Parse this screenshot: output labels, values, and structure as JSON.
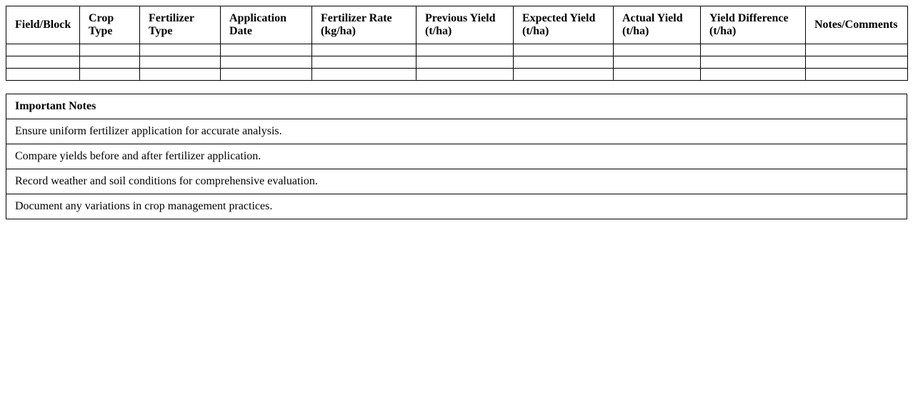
{
  "table": {
    "headers": [
      "Field/Block",
      "Crop Type",
      "Fertilizer Type",
      "Application Date",
      "Fertilizer Rate (kg/ha)",
      "Previous Yield (t/ha)",
      "Expected Yield (t/ha)",
      "Actual Yield (t/ha)",
      "Yield Difference (t/ha)",
      "Notes/Comments"
    ],
    "rows": [
      [
        "",
        "",
        "",
        "",
        "",
        "",
        "",
        "",
        "",
        ""
      ],
      [
        "",
        "",
        "",
        "",
        "",
        "",
        "",
        "",
        "",
        ""
      ],
      [
        "",
        "",
        "",
        "",
        "",
        "",
        "",
        "",
        "",
        ""
      ]
    ]
  },
  "notes": {
    "title": "Important Notes",
    "items": [
      "Ensure uniform fertilizer application for accurate analysis.",
      "Compare yields before and after fertilizer application.",
      "Record weather and soil conditions for comprehensive evaluation.",
      "Document any variations in crop management practices."
    ]
  }
}
